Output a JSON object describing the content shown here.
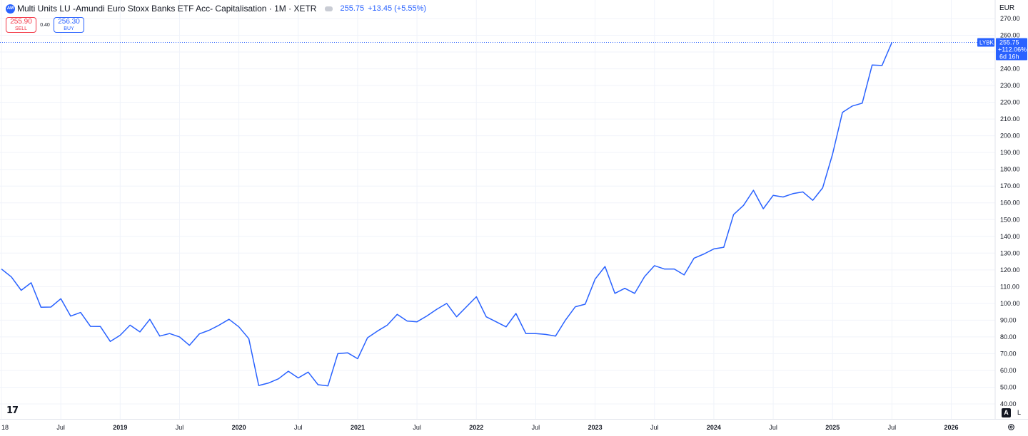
{
  "header": {
    "logo_text": "AM",
    "title": "Multi Units LU -Amundi Euro Stoxx Banks ETF Acc- Capitalisation · 1M · XETR",
    "last_price": "255.75",
    "change": "+13.45 (+5.55%)"
  },
  "trade": {
    "sell_price": "255.90",
    "sell_label": "SELL",
    "spread": "0.40",
    "buy_price": "256.30",
    "buy_label": "BUY"
  },
  "currency": "EUR",
  "price_tag": {
    "ticker": "LYBK",
    "price": "255.75",
    "change_pct": "+112.06%",
    "countdown": "6d 16h"
  },
  "controls": {
    "auto_label": "A",
    "log_label": "L"
  },
  "colors": {
    "line": "#2962ff",
    "tag_bg": "#2962ff",
    "grid": "#f0f3fa",
    "sell": "#f23645"
  },
  "chart_data": {
    "type": "line",
    "title": "",
    "xlabel": "",
    "ylabel": "",
    "ylim": [
      40,
      270
    ],
    "y_ticks": [
      "40.00",
      "50.00",
      "60.00",
      "70.00",
      "80.00",
      "90.00",
      "100.00",
      "110.00",
      "120.00",
      "130.00",
      "140.00",
      "150.00",
      "160.00",
      "170.00",
      "180.00",
      "190.00",
      "200.00",
      "210.00",
      "220.00",
      "230.00",
      "240.00",
      "250.00",
      "260.00",
      "270.00"
    ],
    "x_ticks": [
      "18",
      "Jul",
      "2019",
      "Jul",
      "2020",
      "Jul",
      "2021",
      "Jul",
      "2022",
      "Jul",
      "2023",
      "Jul",
      "2024",
      "Jul",
      "2025",
      "Jul",
      "2026"
    ],
    "grid": true,
    "series": [
      {
        "x": [
          "2018-01",
          "2018-02",
          "2018-03",
          "2018-04",
          "2018-05",
          "2018-06",
          "2018-07",
          "2018-08",
          "2018-09",
          "2018-10",
          "2018-11",
          "2018-12",
          "2019-01",
          "2019-02",
          "2019-03",
          "2019-04",
          "2019-05",
          "2019-06",
          "2019-07",
          "2019-08",
          "2019-09",
          "2019-10",
          "2019-11",
          "2019-12",
          "2020-01",
          "2020-02",
          "2020-03",
          "2020-04",
          "2020-05",
          "2020-06",
          "2020-07",
          "2020-08",
          "2020-09",
          "2020-10",
          "2020-11",
          "2020-12",
          "2021-01",
          "2021-02",
          "2021-03",
          "2021-04",
          "2021-05",
          "2021-06",
          "2021-07",
          "2021-08",
          "2021-09",
          "2021-10",
          "2021-11",
          "2021-12",
          "2022-01",
          "2022-02",
          "2022-03",
          "2022-04",
          "2022-05",
          "2022-06",
          "2022-07",
          "2022-08",
          "2022-09",
          "2022-10",
          "2022-11",
          "2022-12",
          "2023-01",
          "2023-02",
          "2023-03",
          "2023-04",
          "2023-05",
          "2023-06",
          "2023-07",
          "2023-08",
          "2023-09",
          "2023-10",
          "2023-11",
          "2023-12",
          "2024-01",
          "2024-02",
          "2024-03",
          "2024-04",
          "2024-05",
          "2024-06",
          "2024-07",
          "2024-08",
          "2024-09",
          "2024-10",
          "2024-11",
          "2024-12",
          "2025-01",
          "2025-02",
          "2025-03",
          "2025-04",
          "2025-05",
          "2025-06",
          "2025-07"
        ],
        "values": [
          120.5,
          115.8,
          107.8,
          112.3,
          97.7,
          97.8,
          102.8,
          92.4,
          94.6,
          86.3,
          86.2,
          77.3,
          81.0,
          87.0,
          83.0,
          90.5,
          80.5,
          82.0,
          80.0,
          75.0,
          81.8,
          84.0,
          87.0,
          90.5,
          86.0,
          79.0,
          51.0,
          52.5,
          55.0,
          59.5,
          55.5,
          59.0,
          51.5,
          50.8,
          70.0,
          70.5,
          67.0,
          79.5,
          83.5,
          87.0,
          93.5,
          89.5,
          89.0,
          92.5,
          96.5,
          100.0,
          92.0,
          98.0,
          104.0,
          92.0,
          89.0,
          86.0,
          94.0,
          82.0,
          82.0,
          81.5,
          80.5,
          90.0,
          98.0,
          99.5,
          114.5,
          122.0,
          106.0,
          109.0,
          106.0,
          116.0,
          122.5,
          120.5,
          120.5,
          117.0,
          127.0,
          129.5,
          132.5,
          133.5,
          153.0,
          158.5,
          167.5,
          156.5,
          164.5,
          163.5,
          165.5,
          166.5,
          161.5,
          169.0,
          189.0,
          214.0,
          217.8,
          219.5,
          242.3,
          242.0,
          255.75
        ]
      }
    ]
  }
}
